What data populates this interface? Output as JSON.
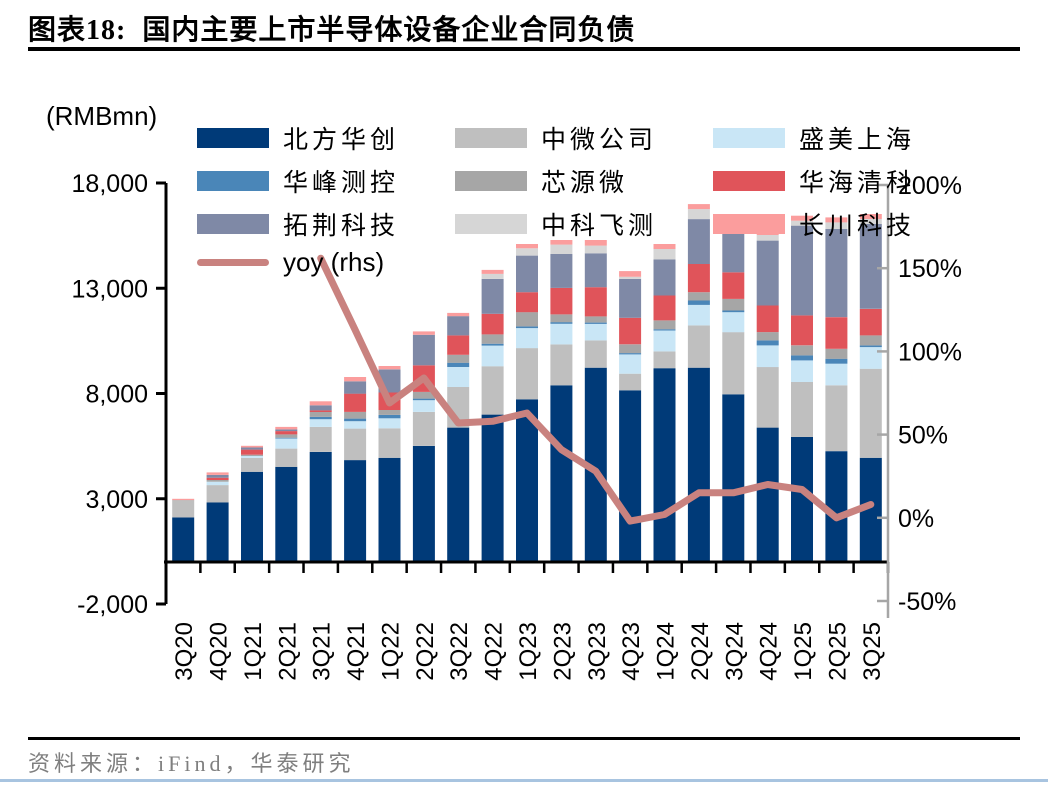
{
  "header": {
    "title": "图表18:  国内主要上市半导体设备企业合同负债"
  },
  "footer": {
    "source": "资料来源：iFind，华泰研究"
  },
  "chart_data": {
    "type": "bar",
    "subtype": "stacked-bar-with-line",
    "title": "国内主要上市半导体设备企业合同负债",
    "unit_label": "(RMBmn)",
    "grid": false,
    "legend_position": "top",
    "categories": [
      "3Q20",
      "4Q20",
      "1Q21",
      "2Q21",
      "3Q21",
      "4Q21",
      "1Q22",
      "2Q22",
      "3Q22",
      "4Q22",
      "1Q23",
      "2Q23",
      "3Q23",
      "4Q23",
      "1Q24",
      "2Q24",
      "3Q24",
      "4Q24",
      "1Q25",
      "2Q25",
      "3Q25"
    ],
    "series": [
      {
        "name": "北方华创",
        "color": "#003a78",
        "values": [
          2115,
          2830,
          4280,
          4517,
          5228,
          4835,
          4944,
          5513,
          6380,
          6996,
          7726,
          8390,
          9225,
          8150,
          9200,
          9225,
          7963,
          6380,
          5939,
          5261,
          4944
        ]
      },
      {
        "name": "中微公司",
        "color": "#bfbfbf",
        "values": [
          825,
          820,
          660,
          867,
          1185,
          1498,
          1403,
          1612,
          1929,
          2300,
          2432,
          1943,
          1298,
          790,
          800,
          2009,
          2953,
          2877,
          2607,
          3128,
          4233
        ]
      },
      {
        "name": "盛美上海",
        "color": "#c9e6f6",
        "values": [
          0,
          160,
          95,
          474,
          365,
          351,
          474,
          555,
          948,
          981,
          948,
          977,
          787,
          919,
          995,
          976,
          948,
          1029,
          1029,
          1025,
          1029
        ]
      },
      {
        "name": "华峰测控",
        "color": "#4a86b8",
        "values": [
          0,
          0,
          0,
          40,
          110,
          124,
          161,
          76,
          204,
          90,
          80,
          80,
          60,
          60,
          60,
          209,
          80,
          237,
          237,
          237,
          80
        ]
      },
      {
        "name": "芯源微",
        "color": "#a6a6a6",
        "values": [
          0,
          80,
          60,
          157,
          234,
          318,
          237,
          318,
          379,
          441,
          680,
          365,
          291,
          414,
          415,
          393,
          550,
          393,
          474,
          474,
          474
        ]
      },
      {
        "name": "华海清科",
        "color": "#e0545a",
        "values": [
          0,
          110,
          240,
          158,
          79,
          867,
          830,
          1266,
          920,
          977,
          948,
          1261,
          1388,
          1261,
          1185,
          1342,
          1266,
          1266,
          1422,
          1502,
          1261
        ]
      },
      {
        "name": "拓荆科技",
        "color": "#7f89a6",
        "values": [
          0,
          130,
          100,
          80,
          240,
          588,
          1098,
          1450,
          915,
          1659,
          1739,
          1612,
          1612,
          1849,
          1710,
          2133,
          2451,
          3081,
          4266,
          4186,
          4030
        ]
      },
      {
        "name": "中科飞测",
        "color": "#d6d6d6",
        "values": [
          0,
          0,
          0,
          0,
          0,
          0,
          0,
          0,
          0,
          237,
          346,
          445,
          365,
          100,
          500,
          474,
          120,
          265,
          237,
          318,
          237
        ]
      },
      {
        "name": "长川科技",
        "color": "#fb9d9d",
        "values": [
          60,
          120,
          80,
          120,
          190,
          203,
          158,
          160,
          155,
          190,
          204,
          218,
          265,
          270,
          237,
          237,
          85,
          285,
          237,
          237,
          237
        ]
      }
    ],
    "line": {
      "name": "yoy (rhs)",
      "color": "#c9827f",
      "axis": "right",
      "start_index": 4,
      "values_pct": [
        156,
        113,
        69,
        84,
        57,
        58,
        63,
        41,
        28,
        -2,
        2,
        15,
        15,
        20,
        17,
        0,
        8
      ]
    },
    "left_axis": {
      "tick_labels": [
        "18,000",
        "13,000",
        "8,000",
        "3,000",
        "-2,000"
      ],
      "tick_values": [
        18000,
        13000,
        8000,
        3000,
        -2000
      ],
      "range": [
        -2000,
        18000
      ]
    },
    "right_axis": {
      "tick_labels": [
        "200%",
        "150%",
        "100%",
        "50%",
        "0%",
        "-50%"
      ],
      "tick_values": [
        200,
        150,
        100,
        50,
        0,
        -50
      ],
      "range": [
        -50,
        200
      ]
    }
  }
}
